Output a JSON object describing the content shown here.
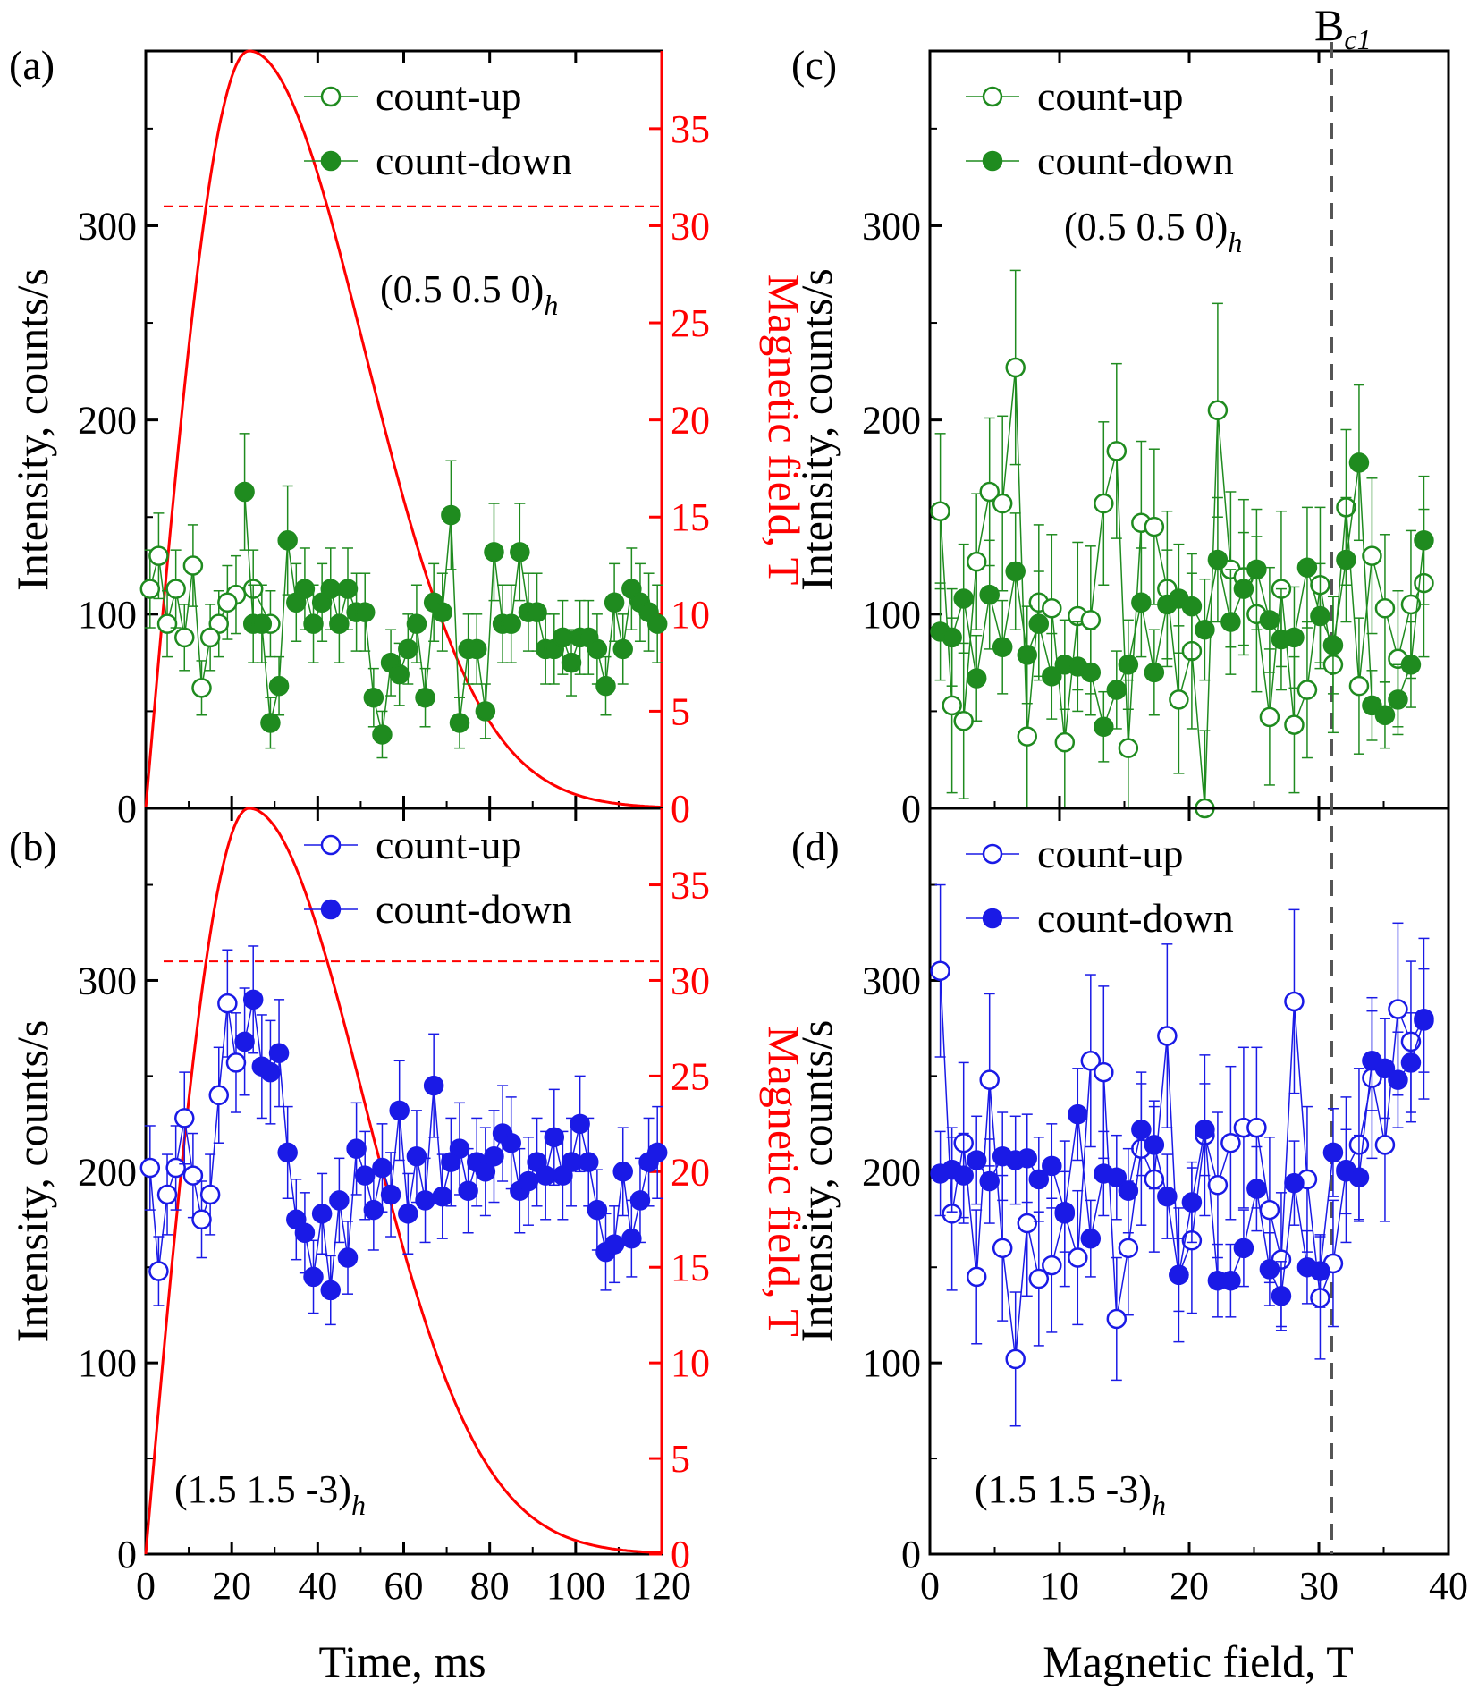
{
  "figure": {
    "shared_xlabel_left": "Time, ms",
    "shared_xlabel_right": "Magnetic field, T",
    "bc1_label": "B",
    "bc1_sub": "c1"
  },
  "colors": {
    "green": "#1f8b1f",
    "blue": "#1a1ae6",
    "red": "#ff0000",
    "dashed_gray": "#555555"
  },
  "chart_data": [
    {
      "panel": "(a)",
      "type": "scatter",
      "xlabel": "",
      "ylabel": "Intensity, counts/s",
      "y2label": "Magnetic field, T",
      "xlim": [
        0,
        120
      ],
      "ylim": [
        0,
        390
      ],
      "y2lim": [
        0,
        39
      ],
      "xticks": [
        0,
        20,
        40,
        60,
        80,
        100,
        120
      ],
      "yticks": [
        0,
        100,
        200,
        300
      ],
      "y2ticks": [
        0,
        5,
        10,
        15,
        20,
        25,
        30,
        35
      ],
      "annotation": "(0.5 0.5 0)",
      "annotation_sub": "h",
      "color": "green",
      "field_curve": {
        "peak_time_ms": 24,
        "peak_field_T": 39
      },
      "threshold_field_T": 31,
      "series": [
        {
          "name": "count-up",
          "marker": "open",
          "x": [
            1,
            5,
            9,
            13,
            17,
            21,
            25,
            29,
            3,
            7,
            11,
            15,
            19
          ],
          "y": [
            113,
            95,
            88,
            62,
            95,
            110,
            113,
            95,
            130,
            113,
            125,
            88,
            106
          ],
          "err": [
            20,
            17,
            17,
            14,
            17,
            20,
            20,
            17,
            22,
            20,
            21,
            17,
            19
          ]
        },
        {
          "name": "count-down",
          "marker": "filled",
          "x": [
            23,
            25,
            27,
            29,
            31,
            33,
            35,
            37,
            39,
            41,
            43,
            45,
            47,
            49,
            51,
            53,
            55,
            57,
            59,
            61,
            63,
            65,
            67,
            69,
            71,
            73,
            75,
            77,
            79,
            81,
            83,
            85,
            87,
            89,
            91,
            93,
            95,
            97,
            99,
            101,
            103,
            105,
            107,
            109,
            111,
            113,
            115,
            117,
            119
          ],
          "y": [
            163,
            95,
            95,
            44,
            63,
            138,
            106,
            113,
            95,
            106,
            113,
            95,
            113,
            101,
            101,
            57,
            38,
            75,
            69,
            82,
            95,
            57,
            106,
            101,
            151,
            44,
            82,
            82,
            50,
            132,
            95,
            95,
            132,
            101,
            101,
            82,
            82,
            88,
            75,
            88,
            88,
            82,
            63,
            106,
            82,
            113,
            106,
            101,
            95
          ],
          "err": [
            30,
            20,
            20,
            13,
            15,
            28,
            20,
            21,
            20,
            20,
            21,
            20,
            21,
            20,
            20,
            15,
            12,
            17,
            16,
            18,
            20,
            15,
            20,
            20,
            28,
            13,
            18,
            18,
            14,
            25,
            20,
            20,
            25,
            20,
            20,
            18,
            18,
            19,
            17,
            19,
            19,
            18,
            15,
            20,
            18,
            21,
            20,
            20,
            20
          ]
        }
      ]
    },
    {
      "panel": "(b)",
      "type": "scatter",
      "xlabel": "Time, ms",
      "ylabel": "Intensity, counts/s",
      "y2label": "Magnetic field, T",
      "xlim": [
        0,
        120
      ],
      "ylim": [
        0,
        390
      ],
      "y2lim": [
        0,
        39
      ],
      "xticks": [
        0,
        20,
        40,
        60,
        80,
        100,
        120
      ],
      "yticks": [
        0,
        100,
        200,
        300
      ],
      "y2ticks": [
        0,
        5,
        10,
        15,
        20,
        25,
        30,
        35
      ],
      "annotation": "(1.5 1.5 -3)",
      "annotation_sub": "h",
      "color": "blue",
      "field_curve": {
        "peak_time_ms": 24,
        "peak_field_T": 39
      },
      "threshold_field_T": 31,
      "series": [
        {
          "name": "count-up",
          "marker": "open",
          "x": [
            1,
            3,
            5,
            7,
            9,
            11,
            13,
            15,
            17,
            19,
            21
          ],
          "y": [
            202,
            148,
            188,
            202,
            228,
            198,
            175,
            188,
            240,
            288,
            257
          ],
          "err": [
            22,
            18,
            21,
            22,
            24,
            22,
            20,
            21,
            25,
            28,
            26
          ]
        },
        {
          "name": "count-down",
          "marker": "filled",
          "x": [
            23,
            25,
            27,
            29,
            31,
            33,
            35,
            37,
            39,
            41,
            43,
            45,
            47,
            49,
            51,
            53,
            55,
            57,
            59,
            61,
            63,
            65,
            67,
            69,
            71,
            73,
            75,
            77,
            79,
            81,
            83,
            85,
            87,
            89,
            91,
            93,
            95,
            97,
            99,
            101,
            103,
            105,
            107,
            109,
            111,
            113,
            115,
            117,
            119
          ],
          "y": [
            268,
            290,
            255,
            252,
            262,
            210,
            175,
            168,
            145,
            178,
            138,
            185,
            155,
            212,
            198,
            180,
            202,
            188,
            232,
            178,
            208,
            185,
            245,
            187,
            205,
            212,
            190,
            205,
            200,
            208,
            220,
            215,
            190,
            195,
            205,
            198,
            218,
            198,
            205,
            225,
            205,
            180,
            158,
            162,
            200,
            165,
            185,
            205,
            210
          ],
          "err": [
            28,
            28,
            27,
            27,
            28,
            24,
            21,
            21,
            19,
            21,
            18,
            22,
            19,
            24,
            23,
            21,
            23,
            22,
            26,
            21,
            24,
            22,
            27,
            22,
            23,
            24,
            22,
            23,
            23,
            24,
            25,
            24,
            22,
            23,
            23,
            23,
            25,
            23,
            23,
            25,
            23,
            21,
            20,
            20,
            23,
            20,
            22,
            23,
            24
          ]
        }
      ]
    },
    {
      "panel": "(c)",
      "type": "scatter",
      "xlabel": "",
      "ylabel": "Intensity, counts/s",
      "xlim": [
        0,
        40
      ],
      "ylim": [
        0,
        390
      ],
      "xticks": [
        0,
        10,
        20,
        30,
        40
      ],
      "yticks": [
        0,
        100,
        200,
        300
      ],
      "annotation": "(0.5 0.5 0)",
      "annotation_sub": "h",
      "color": "green",
      "bc1_T": 31,
      "series": [
        {
          "name": "count-up",
          "marker": "open",
          "x": [
            0.8,
            1.7,
            2.6,
            3.6,
            4.6,
            5.6,
            6.6,
            7.5,
            8.4,
            9.4,
            10.4,
            11.4,
            12.4,
            13.4,
            14.4,
            15.3,
            16.3,
            17.3,
            18.3,
            19.2,
            20.2,
            21.2,
            22.2,
            23.2,
            24.2,
            25.2,
            26.2,
            27.1,
            28.1,
            29.1,
            30.1,
            31.1,
            32.1,
            33.1,
            34.1,
            35.1,
            36.1,
            37.1,
            38.1
          ],
          "y": [
            153,
            53,
            45,
            127,
            163,
            157,
            227,
            37,
            106,
            103,
            34,
            99,
            97,
            157,
            184,
            31,
            147,
            145,
            113,
            56,
            81,
            0,
            205,
            123,
            119,
            100,
            47,
            113,
            43,
            61,
            115,
            74,
            155,
            63,
            130,
            103,
            77,
            105,
            116
          ],
          "err": [
            40,
            45,
            40,
            35,
            38,
            45,
            50,
            40,
            40,
            38,
            40,
            38,
            38,
            42,
            45,
            35,
            42,
            40,
            40,
            38,
            40,
            40,
            55,
            40,
            40,
            40,
            35,
            40,
            35,
            35,
            40,
            35,
            40,
            35,
            40,
            38,
            35,
            38,
            38
          ]
        },
        {
          "name": "count-down",
          "marker": "filled",
          "x": [
            0.8,
            1.7,
            2.6,
            3.6,
            4.6,
            5.6,
            6.6,
            7.5,
            8.4,
            9.4,
            10.4,
            11.4,
            12.4,
            13.4,
            14.4,
            15.3,
            16.3,
            17.3,
            18.3,
            19.2,
            20.2,
            21.2,
            22.2,
            23.2,
            24.2,
            25.2,
            26.2,
            27.1,
            28.1,
            29.1,
            30.1,
            31.1,
            32.1,
            33.1,
            34.1,
            35.1,
            36.1,
            37.1,
            38.1
          ],
          "y": [
            91,
            88,
            108,
            67,
            110,
            83,
            122,
            79,
            95,
            68,
            74,
            73,
            70,
            42,
            61,
            74,
            106,
            70,
            105,
            108,
            104,
            92,
            128,
            96,
            113,
            123,
            97,
            87,
            88,
            124,
            99,
            84,
            128,
            178,
            53,
            48,
            56,
            74,
            138
          ],
          "err": [
            25,
            25,
            28,
            22,
            28,
            24,
            30,
            25,
            27,
            22,
            23,
            23,
            22,
            18,
            20,
            23,
            28,
            22,
            28,
            28,
            27,
            26,
            32,
            27,
            29,
            31,
            27,
            26,
            26,
            31,
            27,
            25,
            32,
            40,
            18,
            17,
            18,
            22,
            33
          ]
        }
      ]
    },
    {
      "panel": "(d)",
      "type": "scatter",
      "xlabel": "Magnetic field, T",
      "ylabel": "Intensity, counts/s",
      "xlim": [
        0,
        40
      ],
      "ylim": [
        0,
        390
      ],
      "xticks": [
        0,
        10,
        20,
        30,
        40
      ],
      "yticks": [
        0,
        100,
        200,
        300
      ],
      "annotation": "(1.5 1.5 -3)",
      "annotation_sub": "h",
      "color": "blue",
      "bc1_T": 31,
      "series": [
        {
          "name": "count-up",
          "marker": "open",
          "x": [
            0.8,
            1.7,
            2.6,
            3.6,
            4.6,
            5.6,
            6.6,
            7.5,
            8.4,
            9.4,
            10.4,
            11.4,
            12.4,
            13.4,
            14.4,
            15.3,
            16.3,
            17.3,
            18.3,
            19.2,
            20.2,
            21.2,
            22.2,
            23.2,
            24.2,
            25.2,
            26.2,
            27.1,
            28.1,
            29.1,
            30.1,
            31.1,
            32.1,
            33.1,
            34.1,
            35.1,
            36.1,
            37.1,
            38.1
          ],
          "y": [
            305,
            178,
            215,
            145,
            248,
            160,
            102,
            173,
            144,
            151,
            178,
            155,
            258,
            252,
            123,
            160,
            212,
            196,
            271,
            146,
            164,
            219,
            193,
            215,
            223,
            223,
            180,
            154,
            289,
            196,
            134,
            152,
            201,
            214,
            249,
            214,
            285,
            268,
            280
          ],
          "err": [
            45,
            40,
            42,
            35,
            45,
            38,
            35,
            38,
            35,
            35,
            38,
            35,
            45,
            45,
            32,
            35,
            40,
            38,
            48,
            35,
            38,
            42,
            38,
            40,
            42,
            42,
            38,
            35,
            48,
            38,
            32,
            33,
            38,
            40,
            42,
            40,
            45,
            42,
            42
          ]
        },
        {
          "name": "count-down",
          "marker": "filled",
          "x": [
            0.8,
            1.7,
            2.6,
            3.6,
            4.6,
            5.6,
            6.6,
            7.5,
            8.4,
            9.4,
            10.4,
            11.4,
            12.4,
            13.4,
            14.4,
            15.3,
            16.3,
            17.3,
            18.3,
            19.2,
            20.2,
            21.2,
            22.2,
            23.2,
            24.2,
            25.2,
            26.2,
            27.1,
            28.1,
            29.1,
            30.1,
            31.1,
            32.1,
            33.1,
            34.1,
            35.1,
            36.1,
            37.1,
            38.1
          ],
          "y": [
            199,
            201,
            198,
            206,
            195,
            208,
            206,
            207,
            196,
            203,
            179,
            230,
            165,
            199,
            197,
            190,
            222,
            214,
            187,
            146,
            184,
            222,
            143,
            143,
            160,
            191,
            149,
            135,
            194,
            150,
            148,
            210,
            200,
            197,
            258,
            254,
            248,
            257,
            279
          ],
          "err": [
            22,
            22,
            22,
            23,
            22,
            23,
            23,
            23,
            22,
            22,
            21,
            24,
            20,
            22,
            22,
            22,
            24,
            23,
            22,
            19,
            21,
            24,
            19,
            19,
            20,
            22,
            19,
            18,
            22,
            19,
            19,
            23,
            22,
            22,
            26,
            26,
            25,
            26,
            27
          ]
        }
      ]
    }
  ]
}
